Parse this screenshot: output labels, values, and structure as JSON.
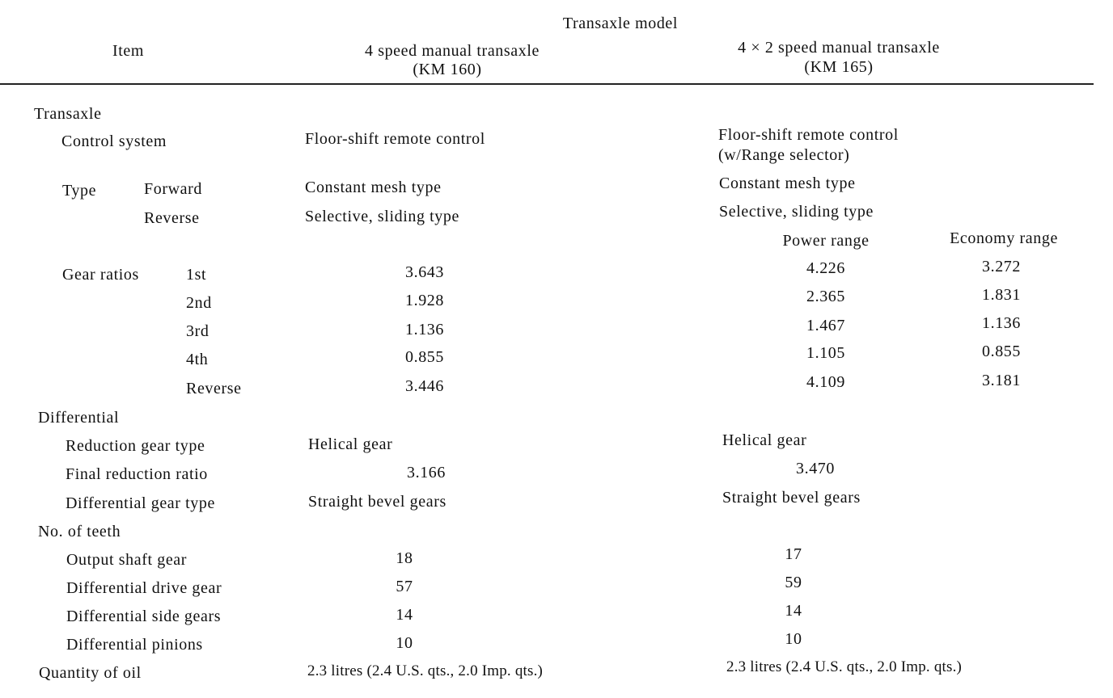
{
  "header": {
    "item": "Item",
    "group": "Transaxle model",
    "col1_line1": "4 speed manual transaxle",
    "col1_line2": "(KM 160)",
    "col2_line1": "4 × 2 speed manual transaxle",
    "col2_line2": "(KM 165)"
  },
  "transaxle": {
    "section": "Transaxle",
    "control_label": "Control system",
    "control_km160": "Floor-shift remote control",
    "control_km165_line1": "Floor-shift remote control",
    "control_km165_line2": "(w/Range selector)",
    "type_label": "Type",
    "forward_label": "Forward",
    "reverse_label": "Reverse",
    "forward_km160": "Constant mesh type",
    "reverse_km160": "Selective, sliding type",
    "forward_km165": "Constant mesh type",
    "reverse_km165": "Selective, sliding type",
    "power_range": "Power range",
    "economy_range": "Economy range",
    "gear_ratios_label": "Gear ratios",
    "gears": [
      {
        "name": "1st",
        "km160": "3.643",
        "power": "4.226",
        "economy": "3.272"
      },
      {
        "name": "2nd",
        "km160": "1.928",
        "power": "2.365",
        "economy": "1.831"
      },
      {
        "name": "3rd",
        "km160": "1.136",
        "power": "1.467",
        "economy": "1.136"
      },
      {
        "name": "4th",
        "km160": "0.855",
        "power": "1.105",
        "economy": "0.855"
      },
      {
        "name": "Reverse",
        "km160": "3.446",
        "power": "4.109",
        "economy": "3.181"
      }
    ]
  },
  "differential": {
    "section": "Differential",
    "reduction_gear_type_label": "Reduction gear type",
    "reduction_gear_type_km160": "Helical gear",
    "reduction_gear_type_km165": "Helical gear",
    "final_ratio_label": "Final reduction ratio",
    "final_ratio_km160": "3.166",
    "final_ratio_km165": "3.470",
    "diff_gear_type_label": "Differential gear type",
    "diff_gear_type_km160": "Straight bevel gears",
    "diff_gear_type_km165": "Straight bevel gears"
  },
  "teeth": {
    "section": "No. of teeth",
    "rows": [
      {
        "label": "Output shaft gear",
        "km160": "18",
        "km165": "17"
      },
      {
        "label": "Differential drive gear",
        "km160": "57",
        "km165": "59"
      },
      {
        "label": "Differential side gears",
        "km160": "14",
        "km165": "14"
      },
      {
        "label": "Differential pinions",
        "km160": "10",
        "km165": "10"
      }
    ]
  },
  "oil": {
    "label": "Quantity of oil",
    "km160": "2.3 litres (2.4 U.S. qts., 2.0 Imp. qts.)",
    "km165": "2.3 litres (2.4 U.S. qts., 2.0 Imp. qts.)"
  }
}
